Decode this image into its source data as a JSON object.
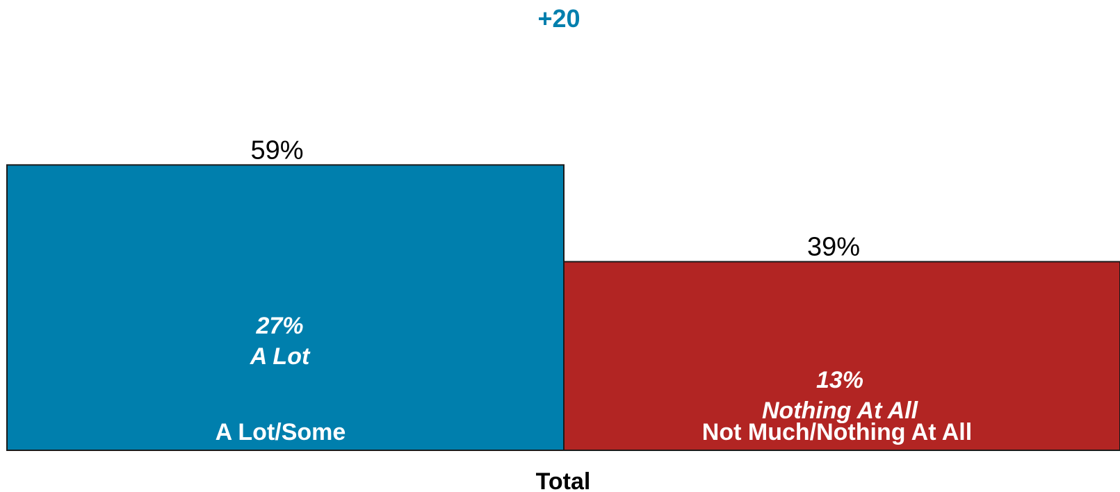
{
  "chart_data": {
    "type": "bar",
    "net_label": "+20",
    "category_label": "Total",
    "ylim": [
      0,
      100
    ],
    "bars": [
      {
        "name": "A Lot/Some",
        "value": 59,
        "value_label": "59%",
        "sub_value": 27,
        "sub_value_label": "27%",
        "sub_name": "A Lot",
        "color": "#007FAD"
      },
      {
        "name": "Not Much/Nothing At All",
        "value": 39,
        "value_label": "39%",
        "sub_value": 13,
        "sub_value_label": "13%",
        "sub_name": "Nothing At All",
        "color": "#B22523"
      }
    ],
    "net_color": "#007FAD"
  }
}
